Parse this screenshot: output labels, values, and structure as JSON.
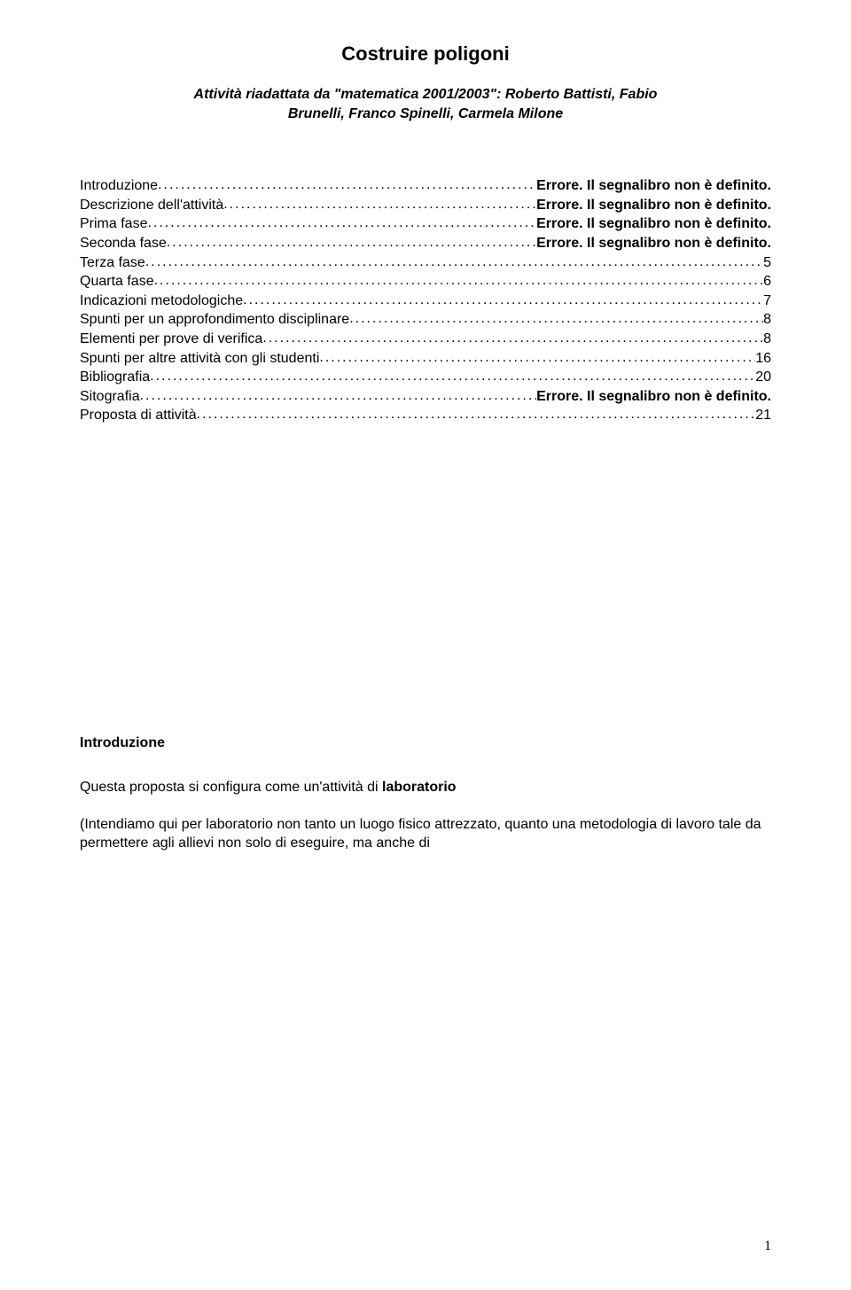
{
  "title": "Costruire poligoni",
  "subtitle_line1": "Attività riadattata da \"matematica 2001/2003\": Roberto Battisti, Fabio",
  "subtitle_line2": "Brunelli, Franco Spinelli, Carmela Milone",
  "toc": [
    {
      "label": "Introduzione",
      "value": "Errore. Il segnalibro non è definito.",
      "bold": true
    },
    {
      "label": "Descrizione dell'attività",
      "value": "Errore. Il segnalibro non è definito.",
      "bold": true
    },
    {
      "label": "Prima fase",
      "value": "Errore. Il segnalibro non è definito.",
      "bold": true
    },
    {
      "label": "Seconda fase",
      "value": "Errore. Il segnalibro non è definito.",
      "bold": true
    },
    {
      "label": "Terza fase",
      "value": "5",
      "bold": false
    },
    {
      "label": "Quarta fase",
      "value": "6",
      "bold": false
    },
    {
      "label": "Indicazioni metodologiche",
      "value": "7",
      "bold": false
    },
    {
      "label": "Spunti per un approfondimento disciplinare",
      "value": "8",
      "bold": false
    },
    {
      "label": "Elementi per prove di verifica",
      "value": "8",
      "bold": false
    },
    {
      "label": "Spunti per altre attività con gli studenti",
      "value": "16",
      "bold": false
    },
    {
      "label": "Bibliografia",
      "value": "20",
      "bold": false
    },
    {
      "label": "Sitografia",
      "value": "Errore. Il segnalibro non è definito.",
      "bold": true
    },
    {
      "label": "Proposta di attività",
      "value": "21",
      "bold": false
    }
  ],
  "section_heading": "Introduzione",
  "paragraph1_line1": "Questa proposta si configura come un'attività di ",
  "paragraph1_bold": "laboratorio",
  "paragraph2": "(Intendiamo qui per laboratorio non tanto un luogo fisico attrezzato, quanto una metodologia di lavoro tale da permettere agli allievi non solo di eseguire, ma anche di",
  "page_number": "1",
  "colors": {
    "text": "#000000",
    "background": "#ffffff"
  },
  "fonts": {
    "body": "Verdana",
    "pagenum": "Times New Roman"
  }
}
